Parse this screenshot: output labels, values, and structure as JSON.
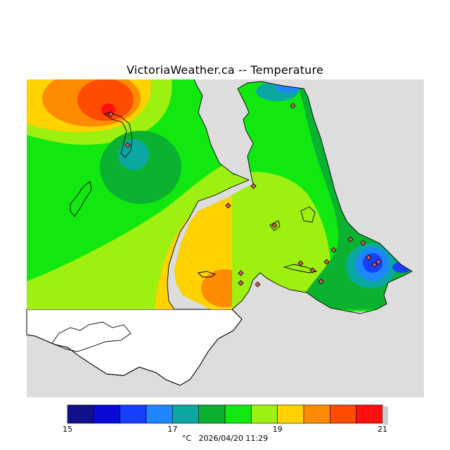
{
  "title": "VictoriaWeather.ca -- Temperature",
  "legend": {
    "min_label": "15",
    "ticks": [
      "15",
      "17",
      "19",
      "21"
    ],
    "bins_per_tick": 4,
    "colors": [
      "#10108a",
      "#0a0ad8",
      "#1640ff",
      "#1e86ff",
      "#0aa8a0",
      "#0ab230",
      "#10e810",
      "#9ef010",
      "#ffd200",
      "#ff8c00",
      "#ff4c00",
      "#ff1010"
    ],
    "unit": "°C",
    "timestamp": "2026/04/20 11:29"
  },
  "colors": {
    "land_outside": "#dddddd",
    "water": "#ffffff",
    "coast": "#000000",
    "station_fill": "#d06060"
  },
  "stations_count_note": "",
  "hotspots": [
    {
      "name": "north-peak",
      "temp": 20.7
    },
    {
      "name": "saanich-cool",
      "temp": 17.2
    },
    {
      "name": "sooke-warm",
      "temp": 19.8
    },
    {
      "name": "victoria-cool",
      "temp": 16.0
    }
  ]
}
